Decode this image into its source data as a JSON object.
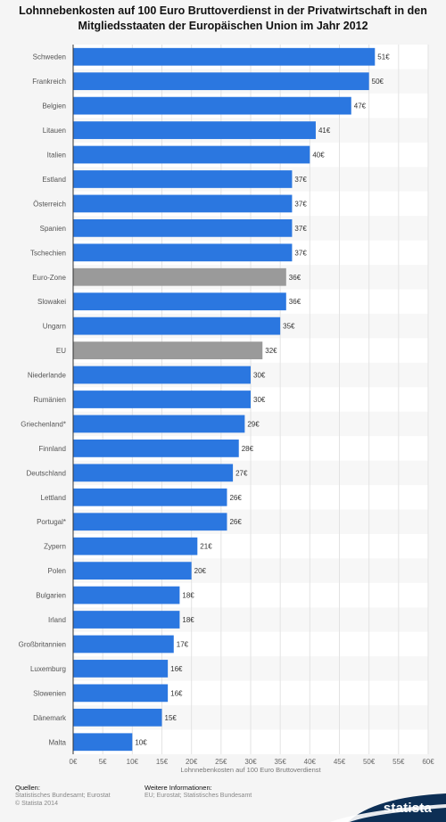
{
  "chart_data": {
    "type": "bar",
    "orientation": "horizontal",
    "title": "Lohnnebenkosten auf 100 Euro Bruttoverdienst in der Privatwirtschaft in den Mitgliedsstaaten der Europäischen Union im Jahr 2012",
    "xlabel": "Lohnnebenkosten auf 100 Euro Bruttoverdienst",
    "xlim": [
      0,
      60
    ],
    "ticks": [
      "0€",
      "5€",
      "10€",
      "15€",
      "20€",
      "25€",
      "30€",
      "35€",
      "40€",
      "45€",
      "50€",
      "55€",
      "60€"
    ],
    "grid": true,
    "colors": {
      "default": "#2b77e0",
      "highlight": "#9a9a9a"
    },
    "categories": [
      "Schweden",
      "Frankreich",
      "Belgien",
      "Litauen",
      "Italien",
      "Estland",
      "Österreich",
      "Spanien",
      "Tschechien",
      "Euro-Zone",
      "Slowakei",
      "Ungarn",
      "EU",
      "Niederlande",
      "Rumänien",
      "Griechenland*",
      "Finnland",
      "Deutschland",
      "Lettland",
      "Portugal*",
      "Zypern",
      "Polen",
      "Bulgarien",
      "Irland",
      "Großbritannien",
      "Luxemburg",
      "Slowenien",
      "Dänemark",
      "Malta"
    ],
    "values": [
      51,
      50,
      47,
      41,
      40,
      37,
      37,
      37,
      37,
      36,
      36,
      35,
      32,
      30,
      30,
      29,
      28,
      27,
      26,
      26,
      21,
      20,
      18,
      18,
      17,
      16,
      16,
      15,
      10
    ],
    "value_labels": [
      "51€",
      "50€",
      "47€",
      "41€",
      "40€",
      "37€",
      "37€",
      "37€",
      "37€",
      "36€",
      "36€",
      "35€",
      "32€",
      "30€",
      "30€",
      "29€",
      "28€",
      "27€",
      "26€",
      "26€",
      "21€",
      "20€",
      "18€",
      "18€",
      "17€",
      "16€",
      "16€",
      "15€",
      "10€"
    ],
    "highlighted": [
      "Euro-Zone",
      "EU"
    ]
  },
  "footer": {
    "sources_heading": "Quellen:",
    "sources_text": "Statistisches Bundesamt; Eurostat",
    "copyright": "© Statista 2014",
    "info_heading": "Weitere Informationen:",
    "info_text": "EU; Eurostat; Statistisches Bundesamt"
  },
  "brand": {
    "name": "statista",
    "color": "#0d2f55"
  }
}
